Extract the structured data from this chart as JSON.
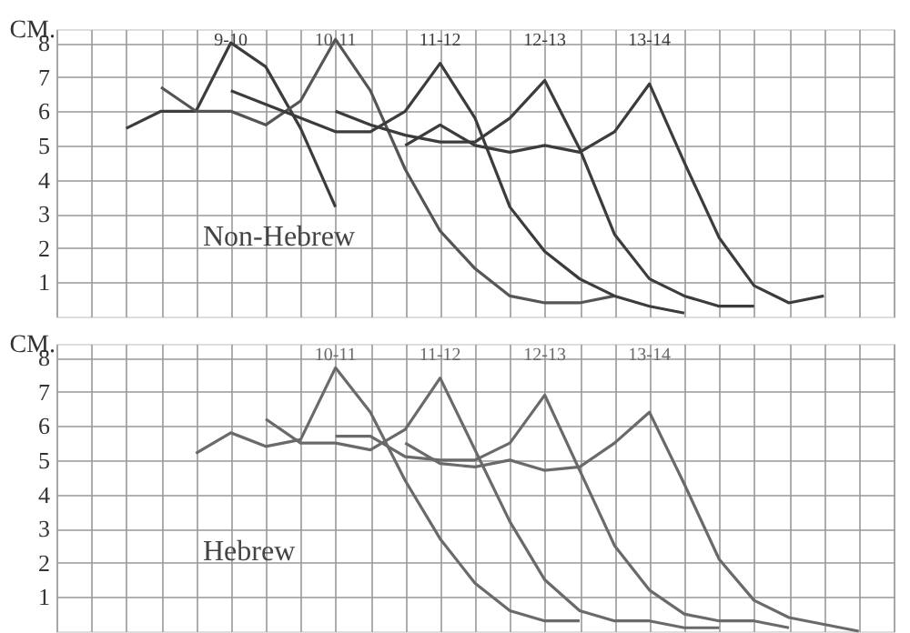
{
  "chart_data": [
    {
      "type": "line",
      "ylabel": "CM.",
      "annotations": [
        "Non-Hebrew"
      ],
      "categories": [
        null,
        null,
        null,
        null,
        null,
        null,
        null,
        null,
        null,
        null,
        null,
        null,
        null,
        null,
        null,
        null,
        null,
        null,
        null,
        null,
        null,
        null,
        null,
        null,
        null
      ],
      "ylim": [
        0,
        8.4
      ],
      "yticks": [
        1,
        2,
        3,
        4,
        5,
        6,
        7,
        8
      ],
      "grid": true,
      "tick_labels": "y",
      "series": [
        {
          "name": "9-10",
          "color": "#3c3c3c",
          "values": [
            null,
            null,
            5.5,
            6.0,
            6.0,
            8.0,
            7.3,
            5.5,
            3.2,
            null,
            null,
            null,
            null,
            null,
            null,
            null,
            null,
            null,
            null,
            null,
            null,
            null,
            null,
            null,
            null
          ]
        },
        {
          "name": "10-11",
          "color": "#555555",
          "values": [
            null,
            null,
            null,
            6.7,
            6.0,
            6.0,
            5.6,
            6.3,
            8.1,
            6.6,
            4.3,
            2.5,
            1.4,
            0.6,
            0.4,
            0.4,
            0.6,
            null,
            null,
            null,
            null,
            null,
            null,
            null,
            null
          ]
        },
        {
          "name": "11-12",
          "color": "#3c3c3c",
          "values": [
            null,
            null,
            null,
            null,
            null,
            6.6,
            6.2,
            5.8,
            5.4,
            5.4,
            6.0,
            7.4,
            5.8,
            3.2,
            1.9,
            1.1,
            0.6,
            0.3,
            0.1,
            null,
            null,
            null,
            null,
            null,
            null
          ]
        },
        {
          "name": "12-13",
          "color": "#3c3c3c",
          "values": [
            null,
            null,
            null,
            null,
            null,
            null,
            null,
            null,
            6.0,
            5.6,
            5.3,
            5.1,
            5.1,
            5.8,
            6.9,
            4.9,
            2.4,
            1.1,
            0.6,
            0.3,
            0.3,
            null,
            null,
            null,
            null
          ]
        },
        {
          "name": "13-14",
          "color": "#3c3c3c",
          "values": [
            null,
            null,
            null,
            null,
            null,
            null,
            null,
            null,
            null,
            null,
            5.0,
            5.6,
            5.0,
            4.8,
            5.0,
            4.8,
            5.4,
            6.8,
            4.5,
            2.3,
            0.9,
            0.4,
            0.6,
            null,
            null
          ]
        }
      ]
    },
    {
      "type": "line",
      "ylabel": "CM.",
      "annotations": [
        "Hebrew"
      ],
      "categories": [
        null,
        null,
        null,
        null,
        null,
        null,
        null,
        null,
        null,
        null,
        null,
        null,
        null,
        null,
        null,
        null,
        null,
        null,
        null,
        null,
        null,
        null,
        null,
        null,
        null
      ],
      "ylim": [
        0,
        8.4
      ],
      "yticks": [
        1,
        2,
        3,
        4,
        5,
        6,
        7,
        8
      ],
      "grid": true,
      "tick_labels": "y",
      "series": [
        {
          "name": "10-11",
          "color": "#6a6a6a",
          "values": [
            null,
            null,
            null,
            null,
            5.2,
            5.8,
            5.4,
            5.6,
            7.7,
            6.4,
            4.4,
            2.7,
            1.4,
            0.6,
            0.3,
            0.3,
            null,
            null,
            null,
            null,
            null,
            null,
            null,
            null,
            null
          ]
        },
        {
          "name": "11-12",
          "color": "#6a6a6a",
          "values": [
            null,
            null,
            null,
            null,
            null,
            null,
            6.2,
            5.5,
            5.5,
            5.3,
            5.9,
            7.4,
            5.3,
            3.2,
            1.5,
            0.6,
            0.3,
            0.3,
            0.1,
            0.1,
            null,
            null,
            null,
            null,
            null
          ]
        },
        {
          "name": "12-13",
          "color": "#6a6a6a",
          "values": [
            null,
            null,
            null,
            null,
            null,
            null,
            null,
            null,
            5.7,
            5.7,
            5.1,
            5.0,
            5.0,
            5.5,
            6.9,
            4.7,
            2.5,
            1.2,
            0.5,
            0.3,
            0.3,
            0.1,
            null,
            null,
            null
          ]
        },
        {
          "name": "13-14",
          "color": "#6a6a6a",
          "values": [
            null,
            null,
            null,
            null,
            null,
            null,
            null,
            null,
            null,
            null,
            5.5,
            4.9,
            4.8,
            5.0,
            4.7,
            4.8,
            5.5,
            6.4,
            4.3,
            2.1,
            0.9,
            0.4,
            0.2,
            0.0,
            null
          ]
        }
      ]
    }
  ]
}
